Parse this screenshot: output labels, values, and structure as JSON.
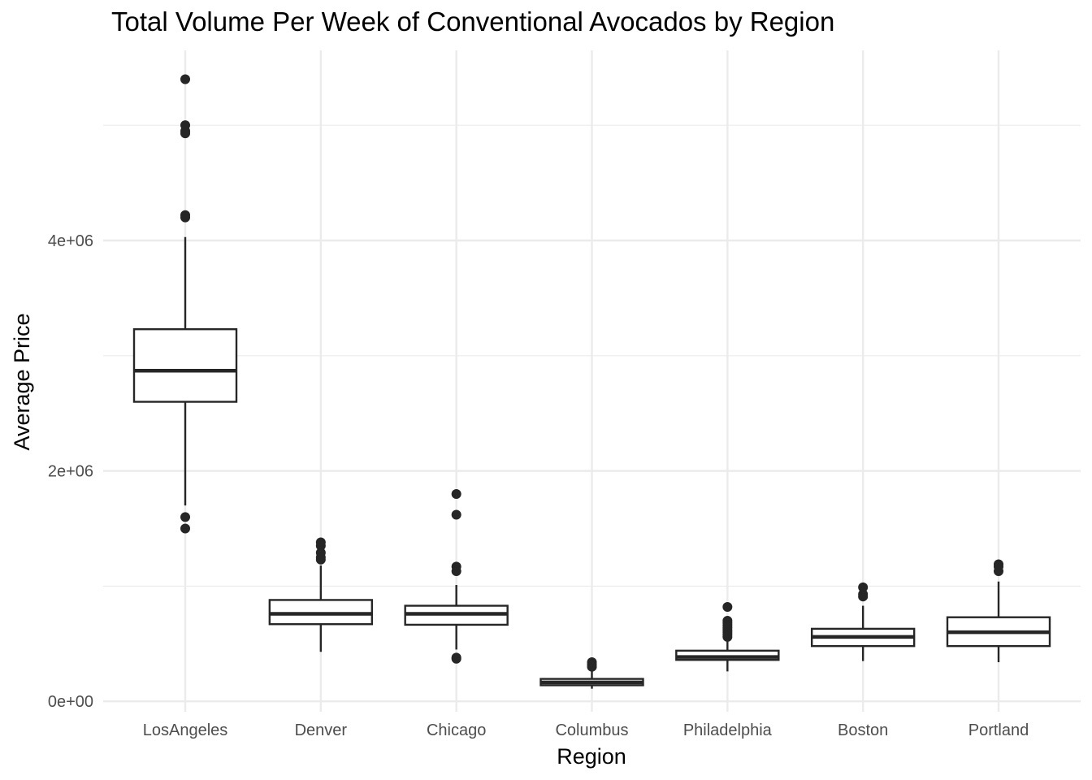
{
  "chart_data": {
    "type": "boxplot",
    "title": "Total Volume Per Week of Conventional Avocados by Region",
    "xlabel": "Region",
    "ylabel": "Average Price",
    "ylim": [
      -90000,
      5650000
    ],
    "y_ticks": [
      {
        "value": 0,
        "label": "0e+00"
      },
      {
        "value": 2000000,
        "label": "2e+06"
      },
      {
        "value": 4000000,
        "label": "4e+06"
      }
    ],
    "y_minor_grid": [
      1000000,
      3000000,
      5000000
    ],
    "grid": true,
    "categories": [
      "LosAngeles",
      "Denver",
      "Chicago",
      "Columbus",
      "Philadelphia",
      "Boston",
      "Portland"
    ],
    "boxes": [
      {
        "region": "LosAngeles",
        "whisker_low": 1700000,
        "q1": 2600000,
        "median": 2870000,
        "q3": 3230000,
        "whisker_high": 4030000,
        "outliers": [
          5400000,
          5000000,
          4950000,
          4930000,
          4220000,
          4200000,
          1600000,
          1500000
        ]
      },
      {
        "region": "Denver",
        "whisker_low": 430000,
        "q1": 670000,
        "median": 760000,
        "q3": 880000,
        "whisker_high": 1180000,
        "outliers": [
          1380000,
          1350000,
          1290000,
          1250000,
          1230000
        ]
      },
      {
        "region": "Chicago",
        "whisker_low": 450000,
        "q1": 665000,
        "median": 760000,
        "q3": 830000,
        "whisker_high": 1010000,
        "outliers": [
          1800000,
          1620000,
          1170000,
          1130000,
          380000,
          370000
        ]
      },
      {
        "region": "Columbus",
        "whisker_low": 110000,
        "q1": 140000,
        "median": 165000,
        "q3": 195000,
        "whisker_high": 270000,
        "outliers": [
          340000,
          320000,
          300000
        ]
      },
      {
        "region": "Philadelphia",
        "whisker_low": 260000,
        "q1": 360000,
        "median": 385000,
        "q3": 440000,
        "whisker_high": 530000,
        "outliers": [
          820000,
          700000,
          680000,
          660000,
          640000,
          620000,
          600000,
          580000,
          560000
        ]
      },
      {
        "region": "Boston",
        "whisker_low": 350000,
        "q1": 480000,
        "median": 560000,
        "q3": 630000,
        "whisker_high": 830000,
        "outliers": [
          990000,
          930000,
          910000
        ]
      },
      {
        "region": "Portland",
        "whisker_low": 340000,
        "q1": 480000,
        "median": 600000,
        "q3": 730000,
        "whisker_high": 1040000,
        "outliers": [
          1190000,
          1170000,
          1130000
        ]
      }
    ]
  }
}
